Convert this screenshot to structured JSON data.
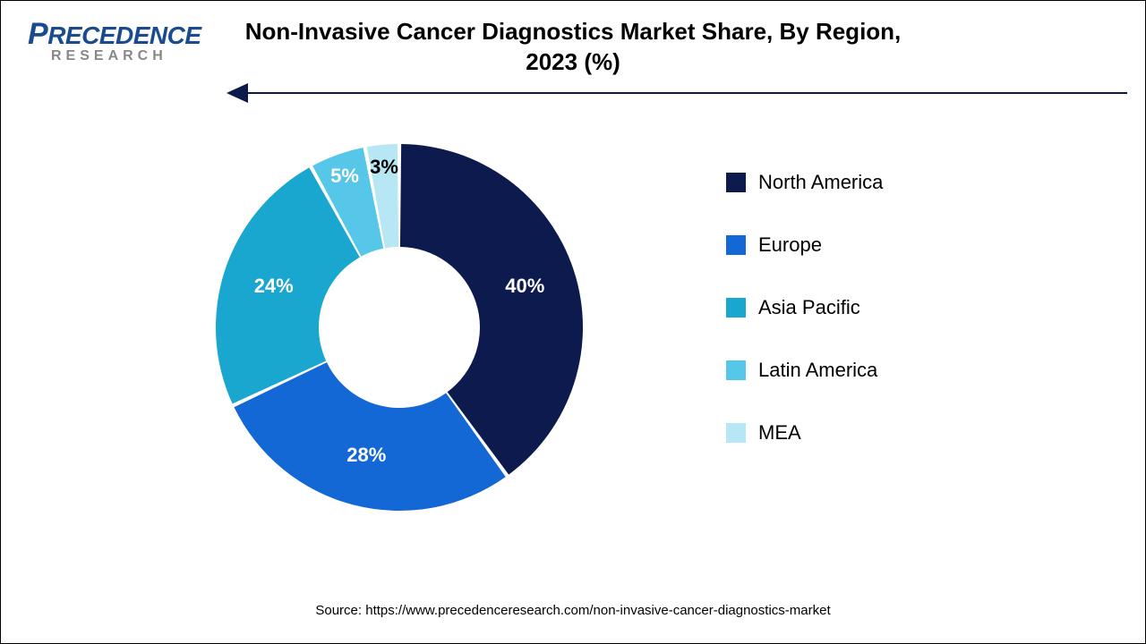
{
  "logo": {
    "p": "P",
    "rest": "RECEDENCE",
    "sub": "RESEARCH"
  },
  "title_line1": "Non-Invasive Cancer Diagnostics Market Share, By Region,",
  "title_line2": "2023 (%)",
  "chart": {
    "type": "donut",
    "background_color": "#ffffff",
    "outer_radius": 205,
    "inner_radius": 90,
    "gap_deg": 1.2,
    "center_fill": "#ffffff",
    "start_angle_deg": -90,
    "label_fontsize": 22,
    "label_color": "#ffffff",
    "slices": [
      {
        "label": "North America",
        "value": 40,
        "color": "#0c1a4d",
        "pct_text": "40%"
      },
      {
        "label": "Europe",
        "value": 28,
        "color": "#1468d6",
        "pct_text": "28%"
      },
      {
        "label": "Asia Pacific",
        "value": 24,
        "color": "#19a6cf",
        "pct_text": "24%"
      },
      {
        "label": "Latin America",
        "value": 5,
        "color": "#56c7e8",
        "pct_text": "5%"
      },
      {
        "label": "MEA",
        "value": 3,
        "color": "#b7e7f4",
        "pct_text": "3%"
      }
    ]
  },
  "legend": {
    "items": [
      {
        "label": "North America",
        "color": "#0c1a4d"
      },
      {
        "label": "Europe",
        "color": "#1468d6"
      },
      {
        "label": "Asia Pacific",
        "color": "#19a6cf"
      },
      {
        "label": "Latin America",
        "color": "#56c7e8"
      },
      {
        "label": "MEA",
        "color": "#b7e7f4"
      }
    ],
    "fontsize": 22
  },
  "source_text": "Source: https://www.precedenceresearch.com/non-invasive-cancer-diagnostics-market",
  "arrow_color": "#0a1a4a"
}
